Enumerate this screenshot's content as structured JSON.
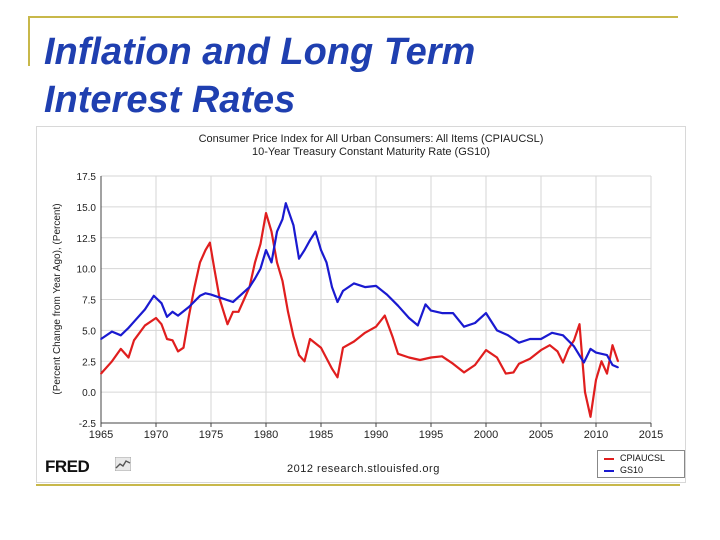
{
  "slide": {
    "title_line1": "Inflation and Long Term",
    "title_line2": "Interest Rates"
  },
  "colors": {
    "title": "#1f3fb0",
    "accent_line": "#c8b84a",
    "cpi": "#e01e1e",
    "gs10": "#1a1ad0"
  },
  "footer": {
    "logo": "FRED",
    "source": "2012 research.stlouisfed.org"
  },
  "chart_data": {
    "type": "line",
    "title": "Consumer Price Index for All Urban Consumers: All Items (CPIAUCSL)",
    "subtitle": "10-Year Treasury Constant Maturity Rate (GS10)",
    "ylabel": "(Percent Change from Year Ago), (Percent)",
    "xlabel": "",
    "xlim": [
      1965,
      2015
    ],
    "ylim": [
      -2.5,
      17.5
    ],
    "xticks": [
      "1965",
      "1970",
      "1975",
      "1980",
      "1985",
      "1990",
      "1995",
      "2000",
      "2005",
      "2010",
      "2015"
    ],
    "yticks": [
      "17.5",
      "15.0",
      "12.5",
      "10.0",
      "7.5",
      "5.0",
      "2.5",
      "0.0",
      "-2.5"
    ],
    "legend_position": "bottom-right",
    "series": [
      {
        "name": "CPIAUCSL",
        "color": "#e01e1e",
        "x": [
          1965,
          1966,
          1966.8,
          1967.5,
          1968,
          1969,
          1970,
          1970.5,
          1971,
          1971.5,
          1972,
          1972.5,
          1973,
          1973.5,
          1974,
          1974.5,
          1974.9,
          1975.3,
          1975.8,
          1976.5,
          1977,
          1977.5,
          1978,
          1978.5,
          1979,
          1979.5,
          1980,
          1980.5,
          1981,
          1981.5,
          1982,
          1982.5,
          1983,
          1983.5,
          1984,
          1985,
          1986,
          1986.5,
          1987,
          1988,
          1989,
          1990,
          1990.8,
          1991.5,
          1992,
          1993,
          1994,
          1995,
          1996,
          1997,
          1998,
          1999,
          2000,
          2001,
          2001.8,
          2002.5,
          2003,
          2004,
          2005,
          2005.8,
          2006.5,
          2007,
          2007.5,
          2008,
          2008.5,
          2009,
          2009.5,
          2010,
          2010.5,
          2011,
          2011.5,
          2012
        ],
        "y": [
          1.5,
          2.5,
          3.5,
          2.8,
          4.2,
          5.4,
          6,
          5.5,
          4.3,
          4.2,
          3.3,
          3.6,
          6.2,
          8.5,
          10.5,
          11.5,
          12.1,
          10,
          7.5,
          5.5,
          6.5,
          6.5,
          7.5,
          8.5,
          10.5,
          12,
          14.5,
          13,
          10.5,
          9,
          6.5,
          4.5,
          3,
          2.5,
          4.3,
          3.6,
          1.9,
          1.2,
          3.6,
          4.1,
          4.8,
          5.3,
          6.2,
          4.5,
          3.1,
          2.8,
          2.6,
          2.8,
          2.9,
          2.3,
          1.6,
          2.2,
          3.4,
          2.8,
          1.5,
          1.6,
          2.3,
          2.7,
          3.4,
          3.8,
          3.3,
          2.4,
          3.5,
          4.2,
          5.5,
          0,
          -2,
          1,
          2.5,
          1.5,
          3.8,
          2.5
        ]
      },
      {
        "name": "GS10",
        "color": "#1a1ad0",
        "x": [
          1965,
          1966,
          1966.8,
          1967.5,
          1968,
          1969,
          1969.8,
          1970.5,
          1971,
          1971.5,
          1972,
          1973,
          1974,
          1974.5,
          1975,
          1976,
          1977,
          1978,
          1978.5,
          1979,
          1979.5,
          1980,
          1980.5,
          1981,
          1981.5,
          1981.8,
          1982.5,
          1983,
          1983.5,
          1984,
          1984.5,
          1985,
          1985.5,
          1986,
          1986.5,
          1987,
          1988,
          1989,
          1990,
          1991,
          1992,
          1993,
          1993.8,
          1994.5,
          1995,
          1996,
          1997,
          1998,
          1999,
          2000,
          2001,
          2002,
          2003,
          2004,
          2005,
          2006,
          2007,
          2008,
          2008.9,
          2009.5,
          2010,
          2011,
          2011.5,
          2012
        ],
        "y": [
          4.3,
          4.9,
          4.6,
          5.2,
          5.7,
          6.7,
          7.8,
          7.2,
          6.1,
          6.5,
          6.2,
          6.9,
          7.8,
          8,
          7.9,
          7.6,
          7.3,
          8.1,
          8.5,
          9.2,
          10,
          11.5,
          10.5,
          13,
          14,
          15.3,
          13.5,
          10.8,
          11.5,
          12.3,
          13,
          11.5,
          10.5,
          8.5,
          7.3,
          8.2,
          8.8,
          8.5,
          8.6,
          7.9,
          7,
          6,
          5.4,
          7.1,
          6.6,
          6.4,
          6.4,
          5.3,
          5.6,
          6.4,
          5,
          4.6,
          4,
          4.3,
          4.3,
          4.8,
          4.6,
          3.7,
          2.4,
          3.5,
          3.2,
          3,
          2.2,
          2
        ]
      }
    ]
  }
}
